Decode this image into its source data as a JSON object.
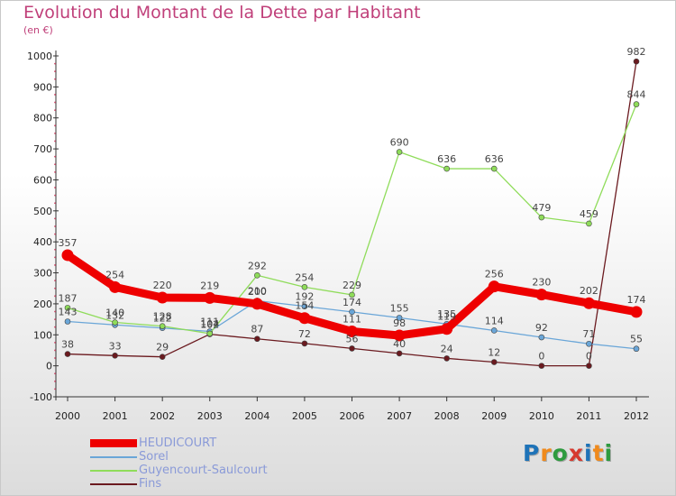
{
  "header": {
    "title": "Evolution du Montant de la Dette par Habitant",
    "subtitle": "(en €)"
  },
  "logo": {
    "text": "Proxiti",
    "colors": [
      "#1e73b8",
      "#f08a1c",
      "#2e9b3f",
      "#d63a2f",
      "#1e73b8",
      "#f08a1c",
      "#2e9b3f"
    ]
  },
  "chart_data": {
    "type": "line",
    "x": [
      "2000",
      "2001",
      "2002",
      "2003",
      "2004",
      "2005",
      "2006",
      "2007",
      "2008",
      "2009",
      "2010",
      "2011",
      "2012"
    ],
    "ylim": [
      -100,
      1000
    ],
    "yticks": [
      -100,
      0,
      100,
      200,
      300,
      400,
      500,
      600,
      700,
      800,
      900,
      1000
    ],
    "grid": false,
    "series": [
      {
        "name": "Fins",
        "color": "#6b1a1f",
        "values": [
          38,
          33,
          29,
          102,
          87,
          72,
          56,
          40,
          24,
          12,
          0,
          0,
          982
        ],
        "labels": [
          "38",
          "33",
          "29",
          "102",
          "87",
          "72",
          "56",
          "40",
          "24",
          "12",
          "0",
          "0",
          "982"
        ]
      },
      {
        "name": "Sorel",
        "color": "#6aa6d8",
        "values": [
          143,
          132,
          122,
          111,
          210,
          192,
          174,
          155,
          135,
          114,
          92,
          71,
          55
        ],
        "labels": [
          "143",
          "132",
          "122",
          "111",
          "210",
          "192",
          "174",
          "155",
          "135",
          "114",
          "92",
          "71",
          "55"
        ]
      },
      {
        "name": "Guyencourt-Saulcourt",
        "color": "#8fdc5a",
        "values": [
          187,
          140,
          128,
          104,
          292,
          254,
          229,
          690,
          636,
          636,
          479,
          459,
          844
        ],
        "labels": [
          "187",
          "140",
          "128",
          "104",
          "292",
          "254",
          "229",
          "690",
          "636",
          "636",
          "479",
          "459",
          "844"
        ]
      },
      {
        "name": "HEUDICOURT",
        "color": "#ee0000",
        "values": [
          357,
          254,
          220,
          219,
          200,
          154,
          111,
          98,
          119,
          256,
          230,
          202,
          174
        ],
        "labels": [
          "357",
          "254",
          "220",
          "219",
          "200",
          "154",
          "111",
          "98",
          "119",
          "256",
          "230",
          "202",
          "174"
        ]
      }
    ],
    "legend": {
      "placement": "bottom-left",
      "entries": [
        "HEUDICOURT",
        "Sorel",
        "Guyencourt-Saulcourt",
        "Fins"
      ]
    }
  }
}
